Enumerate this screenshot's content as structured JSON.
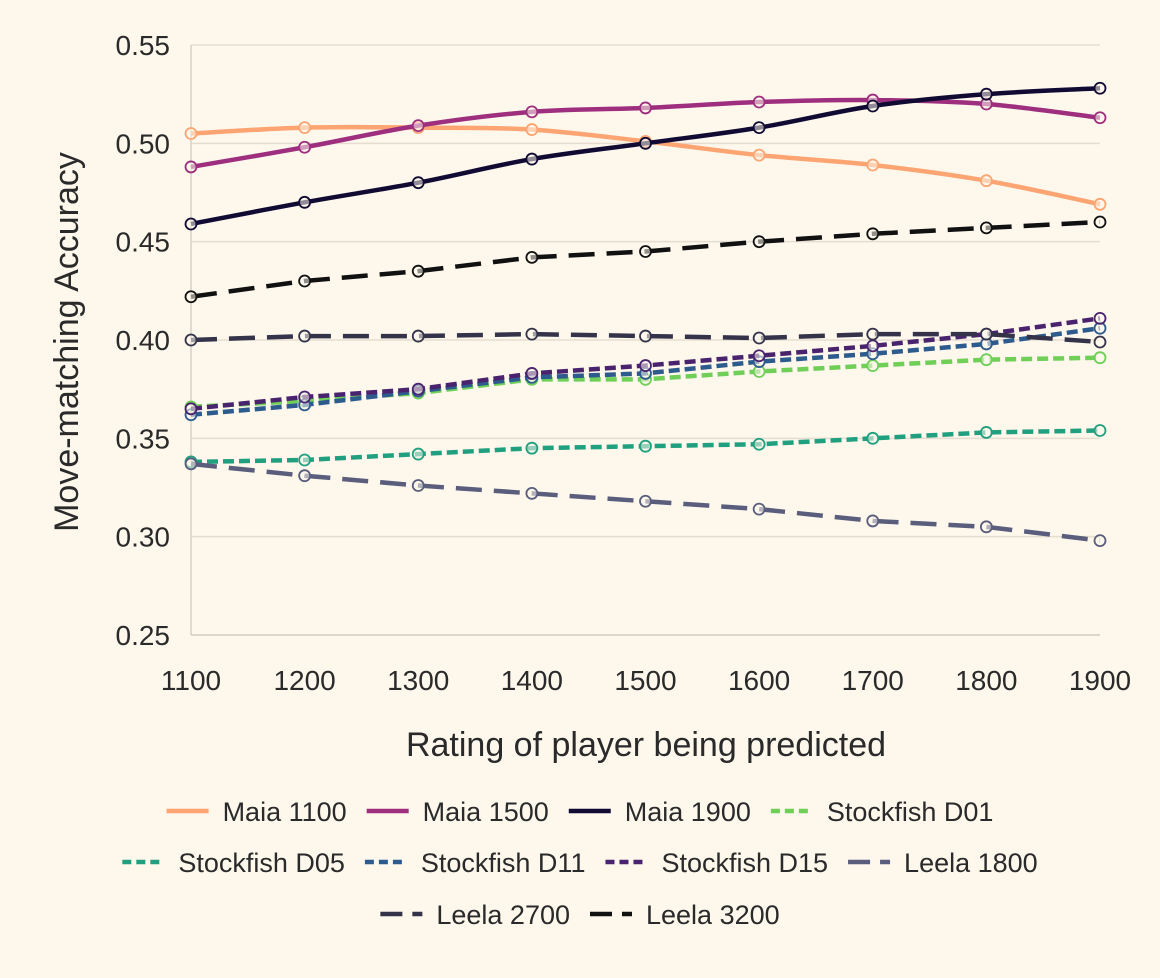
{
  "chart_data": {
    "type": "line",
    "xlabel": "Rating of player being predicted",
    "ylabel": "Move-matching Accuracy",
    "x": [
      1100,
      1200,
      1300,
      1400,
      1500,
      1600,
      1700,
      1800,
      1900
    ],
    "xlim": [
      1100,
      1900
    ],
    "ylim": [
      0.25,
      0.55
    ],
    "x_ticks": [
      "1100",
      "1200",
      "1300",
      "1400",
      "1500",
      "1600",
      "1700",
      "1800",
      "1900"
    ],
    "y_ticks": [
      "0.25",
      "0.30",
      "0.35",
      "0.40",
      "0.45",
      "0.50",
      "0.55"
    ],
    "grid": "horizontal",
    "legend_position": "bottom",
    "series": [
      {
        "name": "Maia 1100",
        "color": "#fca572",
        "dash": "solid",
        "smooth": true,
        "values": [
          0.505,
          0.508,
          0.508,
          0.507,
          0.501,
          0.494,
          0.489,
          0.481,
          0.469
        ]
      },
      {
        "name": "Maia 1500",
        "color": "#9e2f7f",
        "dash": "solid",
        "smooth": true,
        "values": [
          0.488,
          0.498,
          0.509,
          0.516,
          0.518,
          0.521,
          0.522,
          0.52,
          0.513
        ]
      },
      {
        "name": "Maia 1900",
        "color": "#110b33",
        "dash": "solid",
        "smooth": true,
        "values": [
          0.459,
          0.47,
          0.48,
          0.492,
          0.5,
          0.508,
          0.519,
          0.525,
          0.528
        ]
      },
      {
        "name": "Stockfish D01",
        "color": "#6fcf57",
        "dash": "dotted",
        "smooth": false,
        "values": [
          0.366,
          0.369,
          0.373,
          0.38,
          0.38,
          0.384,
          0.387,
          0.39,
          0.391
        ]
      },
      {
        "name": "Stockfish D05",
        "color": "#21a07f",
        "dash": "dotted",
        "smooth": false,
        "values": [
          0.338,
          0.339,
          0.342,
          0.345,
          0.346,
          0.347,
          0.35,
          0.353,
          0.354
        ]
      },
      {
        "name": "Stockfish D11",
        "color": "#2d5b8e",
        "dash": "dotted",
        "smooth": false,
        "values": [
          0.362,
          0.367,
          0.374,
          0.381,
          0.383,
          0.389,
          0.393,
          0.398,
          0.406
        ]
      },
      {
        "name": "Stockfish D15",
        "color": "#4a236f",
        "dash": "dotted",
        "smooth": false,
        "values": [
          0.365,
          0.371,
          0.375,
          0.383,
          0.387,
          0.392,
          0.397,
          0.403,
          0.411
        ]
      },
      {
        "name": "Leela  1800",
        "color": "#5a5d7c",
        "dash": "dashed",
        "smooth": false,
        "values": [
          0.337,
          0.331,
          0.326,
          0.322,
          0.318,
          0.314,
          0.308,
          0.305,
          0.298
        ]
      },
      {
        "name": "Leela  2700",
        "color": "#34334a",
        "dash": "dashed",
        "smooth": false,
        "values": [
          0.4,
          0.402,
          0.402,
          0.403,
          0.402,
          0.401,
          0.403,
          0.403,
          0.399
        ]
      },
      {
        "name": "Leela  3200",
        "color": "#111111",
        "dash": "dashed",
        "smooth": false,
        "values": [
          0.422,
          0.43,
          0.435,
          0.442,
          0.445,
          0.45,
          0.454,
          0.457,
          0.46
        ]
      }
    ]
  }
}
